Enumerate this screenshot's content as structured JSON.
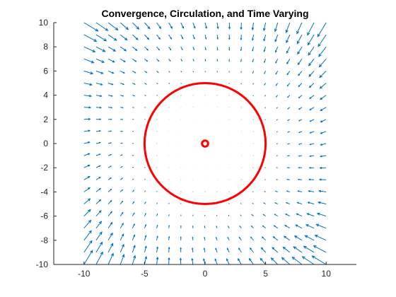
{
  "chart_data": {
    "type": "quiver",
    "title": "Convergence, Circulation, and Time Varying",
    "xlabel": "",
    "ylabel": "",
    "xlim": [
      -12.5,
      12.5
    ],
    "ylim": [
      -10,
      10
    ],
    "xticks": [
      -10,
      -5,
      0,
      5,
      10
    ],
    "xtick_labels": [
      "-10",
      "-5",
      "0",
      "5",
      "10"
    ],
    "yticks": [
      -10,
      -8,
      -6,
      -4,
      -2,
      0,
      2,
      4,
      6,
      8,
      10
    ],
    "ytick_labels": [
      "-10",
      "-8",
      "-6",
      "-4",
      "-2",
      "0",
      "2",
      "4",
      "6",
      "8",
      "10"
    ],
    "grid": false,
    "legend": "none",
    "vector_field": {
      "grid_min": -10,
      "grid_max": 10,
      "grid_step": 1,
      "u_expression": "-x*(x^2+y^2)/500 + 0.25*y*(x^2+y^2)/500",
      "v_expression": "-y*(x^2+y^2)/500 - 0.25*x*(x^2+y^2)/500",
      "color": "#0072BD"
    },
    "circles": [
      {
        "name": "outer circle",
        "center": [
          0,
          0
        ],
        "radius": 5,
        "color": "#FF0000"
      },
      {
        "name": "inner circle",
        "center": [
          0,
          0
        ],
        "radius": 0.25,
        "color": "#FF0000"
      }
    ]
  }
}
